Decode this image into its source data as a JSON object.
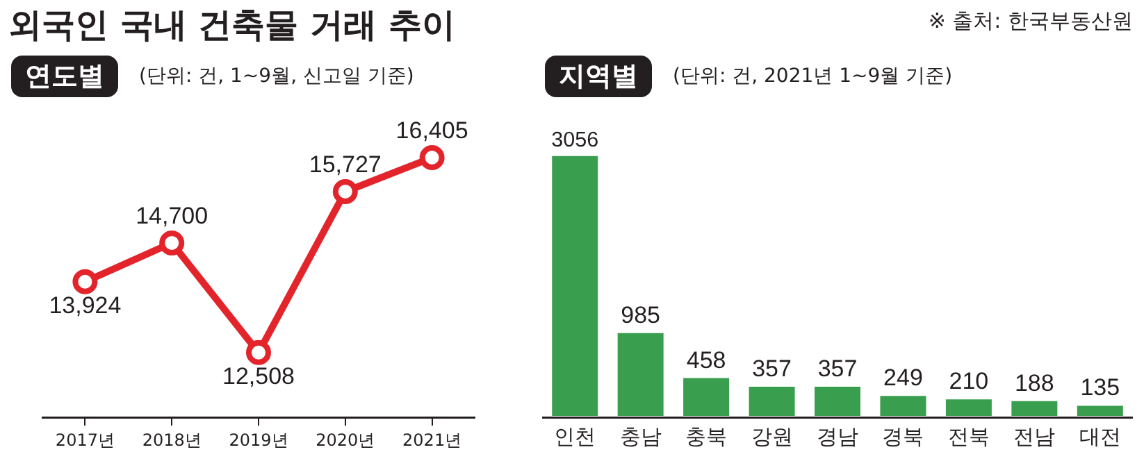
{
  "chart_data": [
    {
      "type": "line",
      "title": "연도별",
      "subtitle": "(단위: 건, 1~9월, 신고일 기준)",
      "annotations": [
        "외국인 국내 건축물 거래 추이"
      ],
      "categories": [
        "2017년",
        "2018년",
        "2019년",
        "2020년",
        "2021년"
      ],
      "series": [
        {
          "color": "#e3242b",
          "values": [
            13924,
            14700,
            12508,
            15727,
            16405
          ],
          "value_labels": [
            "13,924",
            "14,700",
            "12,508",
            "15,727",
            "16,405"
          ]
        }
      ],
      "marker": "circle",
      "grid": false,
      "legend": false
    },
    {
      "type": "bar",
      "title": "지역별",
      "subtitle": "(단위: 건, 2021년 1~9월 기준)",
      "annotations": [
        "※ 출처: 한국부동산원"
      ],
      "categories": [
        "인천",
        "충남",
        "충북",
        "강원",
        "경남",
        "경북",
        "전북",
        "전남",
        "대전"
      ],
      "series": [
        {
          "color": "#3a9e4f",
          "values": [
            3056,
            985,
            458,
            357,
            357,
            249,
            210,
            188,
            135
          ]
        }
      ],
      "data_labels": true,
      "grid": false,
      "legend": false
    }
  ]
}
